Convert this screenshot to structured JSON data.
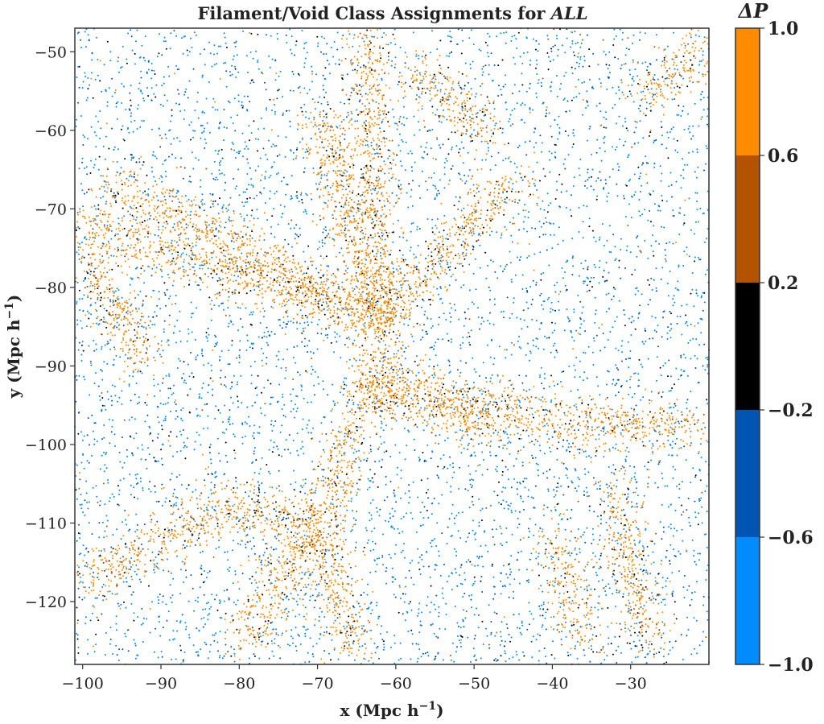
{
  "chart_data": {
    "type": "scatter",
    "title_main": "Filament/Void Class Assignments for ",
    "title_emph": "ALL",
    "xlabel": "x (Mpc h",
    "xlabel_sup": "−1",
    "xlabel_end": ")",
    "ylabel": "y (Mpc h",
    "ylabel_sup": "−1",
    "ylabel_end": ")",
    "xlim": [
      -101,
      -20
    ],
    "ylim": [
      -128,
      -47
    ],
    "xticks": [
      -100,
      -90,
      -80,
      -70,
      -60,
      -50,
      -40,
      -30
    ],
    "xtick_labels": [
      "−100",
      "−90",
      "−80",
      "−70",
      "−60",
      "−50",
      "−40",
      "−30"
    ],
    "yticks": [
      -50,
      -60,
      -70,
      -80,
      -90,
      -100,
      -110,
      -120
    ],
    "ytick_labels": [
      "−50",
      "−60",
      "−70",
      "−80",
      "−90",
      "−100",
      "−110",
      "−120"
    ],
    "grid": false,
    "colorbar": {
      "label_symbol": "ΔP",
      "ticks": [
        1.0,
        0.6,
        0.2,
        -0.2,
        -0.6,
        -1.0
      ],
      "tick_labels": [
        "1.0",
        "0.6",
        "0.2",
        "−0.2",
        "−0.6",
        "−1.0"
      ],
      "bins": [
        {
          "from": 0.6,
          "to": 1.0,
          "color": "#ff8c00"
        },
        {
          "from": 0.2,
          "to": 0.6,
          "color": "#b35300"
        },
        {
          "from": -0.2,
          "to": 0.2,
          "color": "#000000"
        },
        {
          "from": -0.6,
          "to": -0.2,
          "color": "#0055b3"
        },
        {
          "from": -1.0,
          "to": -0.6,
          "color": "#008cff"
        }
      ]
    },
    "filaments": [
      {
        "from": [
          -101,
          -72
        ],
        "to": [
          -62,
          -84
        ]
      },
      {
        "from": [
          -96,
          -67
        ],
        "to": [
          -62,
          -84
        ]
      },
      {
        "from": [
          -64,
          -48
        ],
        "to": [
          -62,
          -84
        ]
      },
      {
        "from": [
          -70,
          -58
        ],
        "to": [
          -62,
          -84
        ]
      },
      {
        "from": [
          -62,
          -84
        ],
        "to": [
          -56,
          -78
        ]
      },
      {
        "from": [
          -56,
          -78
        ],
        "to": [
          -45,
          -66
        ]
      },
      {
        "from": [
          -62,
          -84
        ],
        "to": [
          -63,
          -92
        ]
      },
      {
        "from": [
          -63,
          -92
        ],
        "to": [
          -70,
          -110
        ]
      },
      {
        "from": [
          -70,
          -110
        ],
        "to": [
          -80,
          -126
        ]
      },
      {
        "from": [
          -70,
          -110
        ],
        "to": [
          -65,
          -127
        ]
      },
      {
        "from": [
          -63,
          -92
        ],
        "to": [
          -40,
          -97
        ]
      },
      {
        "from": [
          -40,
          -97
        ],
        "to": [
          -22,
          -98
        ]
      },
      {
        "from": [
          -63,
          -92
        ],
        "to": [
          -48,
          -98
        ]
      },
      {
        "from": [
          -70,
          -110
        ],
        "to": [
          -82,
          -108
        ]
      },
      {
        "from": [
          -82,
          -108
        ],
        "to": [
          -100,
          -118
        ]
      },
      {
        "from": [
          -100,
          -75
        ],
        "to": [
          -92,
          -90
        ]
      },
      {
        "from": [
          -40,
          -112
        ],
        "to": [
          -36,
          -125
        ]
      },
      {
        "from": [
          -58,
          -52
        ],
        "to": [
          -48,
          -60
        ]
      },
      {
        "from": [
          -28,
          -55
        ],
        "to": [
          -20,
          -50
        ]
      },
      {
        "from": [
          -32,
          -106
        ],
        "to": [
          -28,
          -125
        ]
      }
    ],
    "points_background": 6500,
    "points_filament": 7000,
    "seed": 12345
  }
}
